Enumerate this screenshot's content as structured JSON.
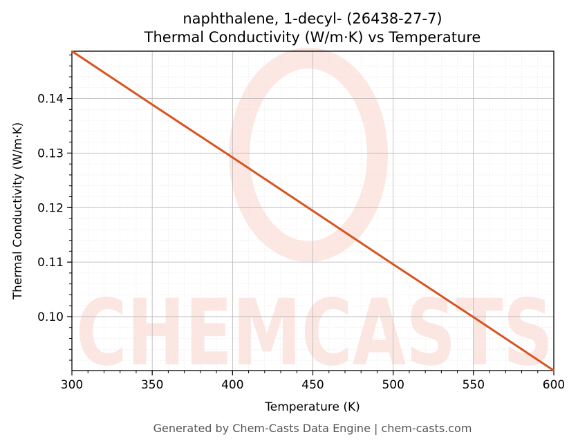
{
  "chart_data": {
    "type": "line",
    "title_line1": "naphthalene, 1-decyl- (26438-27-7)",
    "title_line2": "Thermal Conductivity (W/m·K) vs Temperature",
    "xlabel": "Temperature (K)",
    "ylabel": "Thermal Conductivity (W/m·K)",
    "xlim": [
      300,
      600
    ],
    "ylim": [
      0.0901,
      0.1487
    ],
    "x_ticks": [
      300,
      350,
      400,
      450,
      500,
      550,
      600
    ],
    "y_ticks": [
      0.1,
      0.11,
      0.12,
      0.13,
      0.14
    ],
    "x_tick_labels": [
      "300",
      "350",
      "400",
      "450",
      "500",
      "550",
      "600"
    ],
    "y_tick_labels": [
      "0.10",
      "0.11",
      "0.12",
      "0.13",
      "0.14"
    ],
    "grid": true,
    "series": [
      {
        "color": "#d9531e",
        "x": [
          300,
          350,
          400,
          450,
          500,
          550,
          600
        ],
        "y": [
          0.1487,
          0.1389,
          0.1292,
          0.1194,
          0.1096,
          0.0999,
          0.0901
        ]
      }
    ],
    "watermark": "CHEMCASTS",
    "footer": "Generated by Chem-Casts Data Engine | chem-casts.com"
  }
}
